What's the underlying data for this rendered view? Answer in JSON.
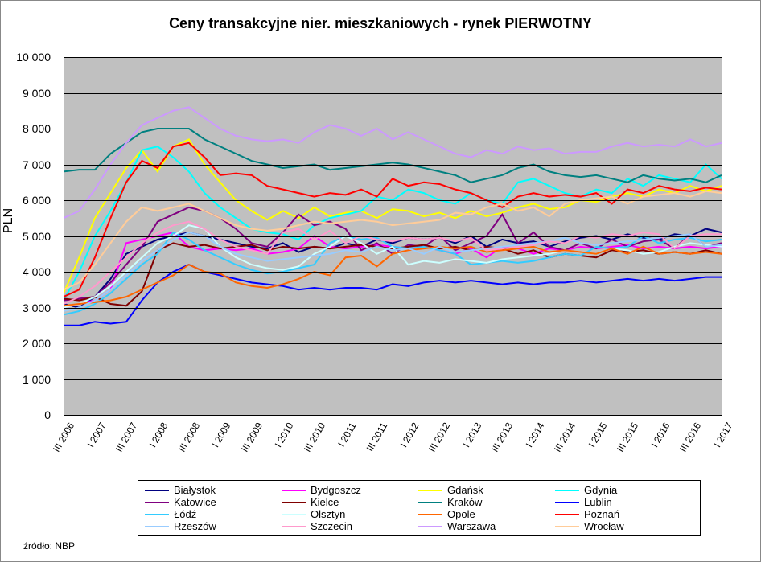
{
  "chart": {
    "title": "Ceny transakcyjne nier. mieszkaniowych - rynek PIERWOTNY",
    "title_fontsize": 18,
    "type": "line",
    "background_color": "#ffffff",
    "plot_background": "#c0c0c0",
    "grid_color": "#000000",
    "ylabel": "PLN",
    "ylabel_fontsize": 16,
    "ylim": [
      0,
      10000
    ],
    "ytick_step": 1000,
    "ytick_labels": [
      "0",
      "1 000",
      "2 000",
      "3 000",
      "4 000",
      "5 000",
      "6 000",
      "7 000",
      "8 000",
      "9 000",
      "10 000"
    ],
    "x_categories": [
      "III 2006",
      "I 2007",
      "III 2007",
      "I 2008",
      "III 2008",
      "I 2009",
      "III 2009",
      "I 2010",
      "III 2010",
      "I 2011",
      "III 2011",
      "I 2012",
      "III 2012",
      "I 2013",
      "III 2013",
      "I 2014",
      "III 2014",
      "I 2015",
      "III 2015",
      "I 2016",
      "III 2016",
      "I 2017"
    ],
    "x_points": 43,
    "x_label_fontsize": 12,
    "x_label_rotation": -60,
    "line_width": 2,
    "series": [
      {
        "name": "Białystok",
        "color": "#000080",
        "values": [
          3100,
          3000,
          3300,
          3800,
          4500,
          4700,
          4900,
          5000,
          5100,
          5000,
          4900,
          4800,
          4700,
          4650,
          4800,
          4550,
          4700,
          4650,
          4800,
          4700,
          4900,
          4800,
          4950,
          4900,
          4950,
          4800,
          5000,
          4700,
          4900,
          4800,
          4850,
          4700,
          4850,
          4950,
          5000,
          4900,
          5050,
          4950,
          4900,
          5050,
          5000,
          5200,
          5100
        ]
      },
      {
        "name": "Bydgoszcz",
        "color": "#ff00ff",
        "values": [
          3000,
          3100,
          3200,
          3500,
          4800,
          4900,
          5000,
          5100,
          4700,
          4600,
          4650,
          4600,
          4650,
          4500,
          4550,
          4650,
          5000,
          4700,
          4650,
          4700,
          4750,
          4700,
          4650,
          4700,
          4600,
          4500,
          4650,
          4400,
          4700,
          4650,
          4500,
          4650,
          4600,
          4700,
          4650,
          4700,
          4750,
          4650,
          4700,
          4650,
          4700,
          4650,
          4700
        ]
      },
      {
        "name": "Gdańsk",
        "color": "#ffff00",
        "values": [
          3400,
          4400,
          5500,
          6200,
          6900,
          7400,
          6800,
          7500,
          7700,
          7000,
          6500,
          6000,
          5700,
          5450,
          5700,
          5500,
          5800,
          5550,
          5650,
          5700,
          5500,
          5750,
          5700,
          5550,
          5650,
          5500,
          5700,
          5550,
          5650,
          5800,
          5900,
          5750,
          5800,
          6000,
          5950,
          6100,
          6200,
          6100,
          6300,
          6200,
          6400,
          6250,
          6400
        ]
      },
      {
        "name": "Gdynia",
        "color": "#00ffff",
        "values": [
          3200,
          4000,
          5000,
          5700,
          6500,
          7400,
          7500,
          7200,
          6800,
          6200,
          5800,
          5500,
          5200,
          5100,
          5050,
          4900,
          5300,
          5500,
          5600,
          5700,
          6100,
          6000,
          6300,
          6200,
          6000,
          5900,
          6200,
          6000,
          5900,
          6500,
          6600,
          6400,
          6200,
          6100,
          6300,
          6200,
          6600,
          6400,
          6700,
          6600,
          6500,
          7000,
          6600
        ]
      },
      {
        "name": "Katowice",
        "color": "#800080",
        "values": [
          3200,
          3250,
          3300,
          3700,
          4200,
          4700,
          5400,
          5600,
          5800,
          5700,
          5500,
          5200,
          4800,
          4700,
          5100,
          5600,
          5300,
          5400,
          5200,
          4600,
          4800,
          4500,
          4750,
          4700,
          5000,
          4600,
          4800,
          5000,
          5600,
          4800,
          5100,
          4700,
          4600,
          4800,
          4650,
          4900,
          4700,
          4850,
          4900,
          4650,
          5050,
          4700,
          4800
        ]
      },
      {
        "name": "Kielce",
        "color": "#800000",
        "values": [
          3250,
          3200,
          3300,
          3100,
          3050,
          3450,
          4600,
          4800,
          4700,
          4750,
          4650,
          4700,
          4750,
          4600,
          4700,
          4650,
          4700,
          4650,
          4700,
          4750,
          4700,
          4650,
          4700,
          4750,
          4650,
          4700,
          4600,
          4700,
          4650,
          4500,
          4600,
          4400,
          4500,
          4450,
          4400,
          4600,
          4550,
          4600,
          4500,
          4550,
          4500,
          4600,
          4500
        ]
      },
      {
        "name": "Kraków",
        "color": "#008080",
        "values": [
          6800,
          6850,
          6850,
          7300,
          7600,
          7900,
          8000,
          8000,
          8000,
          7700,
          7500,
          7300,
          7100,
          7000,
          6900,
          6950,
          7000,
          6850,
          6900,
          6950,
          7000,
          7050,
          7000,
          6900,
          6800,
          6700,
          6500,
          6600,
          6700,
          6900,
          7000,
          6800,
          6700,
          6650,
          6700,
          6600,
          6500,
          6700,
          6600,
          6550,
          6600,
          6500,
          6700
        ]
      },
      {
        "name": "Lublin",
        "color": "#0000ff",
        "values": [
          2500,
          2500,
          2600,
          2550,
          2600,
          3200,
          3700,
          4000,
          4200,
          4000,
          3900,
          3800,
          3700,
          3650,
          3600,
          3500,
          3550,
          3500,
          3550,
          3550,
          3500,
          3650,
          3600,
          3700,
          3750,
          3700,
          3750,
          3700,
          3650,
          3700,
          3650,
          3700,
          3700,
          3750,
          3700,
          3750,
          3800,
          3750,
          3800,
          3750,
          3800,
          3850,
          3850
        ]
      },
      {
        "name": "Łódź",
        "color": "#33ccff",
        "values": [
          2800,
          2900,
          3100,
          3400,
          3800,
          4200,
          4500,
          5100,
          4900,
          4600,
          4400,
          4200,
          4050,
          3950,
          4000,
          4100,
          4200,
          4800,
          5000,
          4900,
          4950,
          4700,
          4650,
          4700,
          4600,
          4500,
          4200,
          4250,
          4300,
          4250,
          4300,
          4400,
          4500,
          4450,
          4700,
          4650,
          4700,
          5000,
          4800,
          4900,
          4950,
          4850,
          4900
        ]
      },
      {
        "name": "Olsztyn",
        "color": "#ccffff",
        "values": [
          3000,
          3100,
          3300,
          3600,
          4000,
          4400,
          4800,
          5000,
          5300,
          5200,
          4700,
          4400,
          4200,
          4100,
          4050,
          4150,
          4500,
          4700,
          5000,
          4800,
          4500,
          4700,
          4200,
          4300,
          4250,
          4350,
          4300,
          4250,
          4350,
          4400,
          4450,
          4500,
          4600,
          4550,
          4500,
          4650,
          4600,
          4500,
          4550,
          4700,
          4800,
          4750,
          4700
        ]
      },
      {
        "name": "Opole",
        "color": "#ff6600",
        "values": [
          3050,
          3100,
          3150,
          3200,
          3300,
          3500,
          3700,
          3900,
          4200,
          4000,
          3950,
          3700,
          3600,
          3550,
          3650,
          3800,
          4000,
          3900,
          4400,
          4450,
          4150,
          4500,
          4600,
          4650,
          4700,
          4650,
          4700,
          4550,
          4600,
          4650,
          4700,
          4550,
          4600,
          4550,
          4500,
          4650,
          4500,
          4700,
          4500,
          4550,
          4500,
          4550,
          4500
        ]
      },
      {
        "name": "Poznań",
        "color": "#ff0000",
        "values": [
          3300,
          3500,
          4400,
          5500,
          6500,
          7100,
          6900,
          7500,
          7600,
          7200,
          6700,
          6750,
          6700,
          6400,
          6300,
          6200,
          6100,
          6200,
          6150,
          6300,
          6100,
          6600,
          6400,
          6500,
          6450,
          6300,
          6200,
          6000,
          5800,
          6100,
          6200,
          6100,
          6150,
          6100,
          6200,
          5900,
          6300,
          6200,
          6400,
          6300,
          6250,
          6350,
          6300
        ]
      },
      {
        "name": "Rzeszów",
        "color": "#99ccff",
        "values": [
          2900,
          3000,
          3200,
          3500,
          3900,
          4300,
          4600,
          4900,
          5100,
          5000,
          4700,
          4500,
          4400,
          4300,
          4350,
          4400,
          4450,
          4500,
          4600,
          4550,
          4700,
          4600,
          4650,
          4500,
          4700,
          4550,
          4600,
          4650,
          4700,
          4750,
          4800,
          4850,
          4950,
          4800,
          4750,
          4800,
          4850,
          4900,
          4950,
          5000,
          5050,
          4700,
          4750
        ]
      },
      {
        "name": "Szczecin",
        "color": "#ff99cc",
        "values": [
          3100,
          3300,
          3600,
          4000,
          4400,
          4800,
          5100,
          5300,
          5400,
          5200,
          4900,
          4700,
          4600,
          4500,
          5100,
          5200,
          4900,
          5150,
          4800,
          5000,
          4900,
          4850,
          4950,
          4900,
          4950,
          4850,
          4950,
          4600,
          4650,
          4700,
          4750,
          4850,
          4800,
          5000,
          4950,
          5050,
          5000,
          5100,
          5050,
          4650,
          5000,
          5050,
          5050
        ]
      },
      {
        "name": "Warszawa",
        "color": "#cc99ff",
        "values": [
          5500,
          5700,
          6300,
          7000,
          7600,
          8100,
          8300,
          8500,
          8600,
          8300,
          8000,
          7800,
          7700,
          7650,
          7700,
          7600,
          7900,
          8100,
          8000,
          7800,
          8000,
          7700,
          7900,
          7700,
          7500,
          7300,
          7200,
          7400,
          7300,
          7500,
          7400,
          7450,
          7300,
          7350,
          7350,
          7500,
          7600,
          7500,
          7550,
          7500,
          7700,
          7500,
          7600
        ]
      },
      {
        "name": "Wrocław",
        "color": "#ffcc99",
        "values": [
          3500,
          3700,
          4200,
          4800,
          5400,
          5800,
          5700,
          5800,
          5900,
          5700,
          5500,
          5300,
          5200,
          5150,
          5200,
          5300,
          5400,
          5350,
          5400,
          5450,
          5400,
          5300,
          5350,
          5400,
          5450,
          5650,
          5600,
          5800,
          5900,
          5700,
          5800,
          5550,
          5900,
          6000,
          6050,
          6100,
          5900,
          6100,
          6150,
          6200,
          6100,
          6250,
          6200
        ]
      }
    ]
  },
  "source_label": "źródło: NBP",
  "legend": {
    "border_color": "#000000",
    "fontsize": 13
  }
}
